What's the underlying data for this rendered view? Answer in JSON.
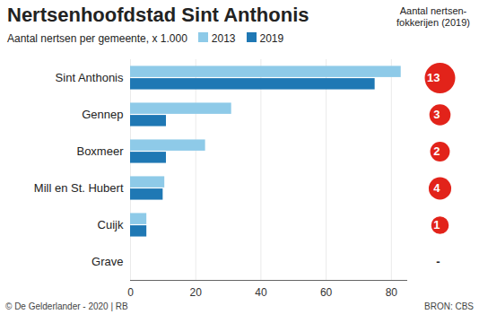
{
  "chart_data": {
    "type": "bar",
    "orientation": "horizontal",
    "title": "Nertsenhoofdstad Sint Anthonis",
    "subtitle": "Aantal nertsen per gemeente, x 1.000",
    "categories": [
      "Sint Anthonis",
      "Gennep",
      "Boxmeer",
      "Mill en St. Hubert",
      "Cuijk",
      "Grave"
    ],
    "series": [
      {
        "name": "2013",
        "color": "#8ecae8",
        "values": [
          83,
          31,
          23,
          10.5,
          5,
          null
        ]
      },
      {
        "name": "2019",
        "color": "#1f78b4",
        "values": [
          75,
          11,
          11,
          10,
          5,
          null
        ]
      }
    ],
    "xlim": [
      0,
      85
    ],
    "xticks": [
      0,
      20,
      40,
      60,
      80
    ],
    "grid": true,
    "legend": "top-left",
    "farms": {
      "title": "Aantal nertsen-fokkerijen (2019)",
      "values": [
        13,
        3,
        2,
        4,
        1,
        null
      ],
      "missing_label": "-",
      "color": "#e2231a"
    },
    "credit": "© De Gelderlander - 2020 | RB",
    "source": "BRON: CBS"
  }
}
